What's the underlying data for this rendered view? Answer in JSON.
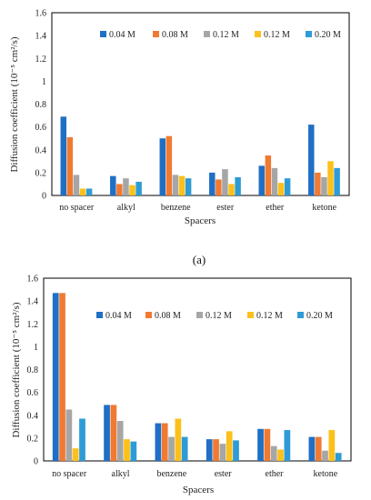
{
  "colors": {
    "series": [
      "#1f6fc5",
      "#f07a32",
      "#a6a6a6",
      "#fbc01a",
      "#2e9bd6"
    ],
    "axis": "#000000"
  },
  "panel_a_label": "(a)",
  "chart_data": [
    {
      "type": "bar",
      "title": "",
      "xlabel": "Spacers",
      "ylabel": "Diffusion coefficient (10⁻⁵ cm²/s)",
      "ylim": [
        0,
        1.6
      ],
      "yticks": [
        "0",
        "0.2",
        "0.4",
        "0.6",
        "0.8",
        "1",
        "1.2",
        "1.4",
        "1.6"
      ],
      "legend_position": "top",
      "grid": false,
      "categories": [
        "no spacer",
        "alkyl",
        "benzene",
        "ester",
        "ether",
        "ketone"
      ],
      "series": [
        {
          "name": "0.04 M",
          "values": [
            0.69,
            0.17,
            0.5,
            0.2,
            0.26,
            0.62
          ]
        },
        {
          "name": "0.08 M",
          "values": [
            0.51,
            0.1,
            0.52,
            0.14,
            0.35,
            0.2
          ]
        },
        {
          "name": "0.12 M",
          "values": [
            0.18,
            0.15,
            0.18,
            0.23,
            0.24,
            0.16
          ]
        },
        {
          "name": "0.12 M",
          "values": [
            0.06,
            0.09,
            0.17,
            0.1,
            0.11,
            0.3
          ]
        },
        {
          "name": "0.20 M",
          "values": [
            0.06,
            0.12,
            0.15,
            0.16,
            0.15,
            0.24
          ]
        }
      ]
    },
    {
      "type": "bar",
      "title": "",
      "xlabel": "Spacers",
      "ylabel": "Diffusion coefficient (10⁻⁵ cm²/s)",
      "ylim": [
        0,
        1.6
      ],
      "yticks": [
        "0",
        "0.2",
        "0.4",
        "0.6",
        "0.8",
        "1",
        "1.2",
        "1.4",
        "1.6"
      ],
      "legend_position": "top",
      "grid": false,
      "categories": [
        "no spacer",
        "alkyl",
        "benzene",
        "ester",
        "ether",
        "ketone"
      ],
      "series": [
        {
          "name": "0.04 M",
          "values": [
            1.47,
            0.49,
            0.33,
            0.19,
            0.28,
            0.21
          ]
        },
        {
          "name": "0.08 M",
          "values": [
            1.47,
            0.49,
            0.33,
            0.19,
            0.28,
            0.21
          ]
        },
        {
          "name": "0.12 M",
          "values": [
            0.45,
            0.35,
            0.21,
            0.15,
            0.13,
            0.09
          ]
        },
        {
          "name": "0.12 M",
          "values": [
            0.11,
            0.19,
            0.37,
            0.26,
            0.1,
            0.27
          ]
        },
        {
          "name": "0.20 M",
          "values": [
            0.37,
            0.17,
            0.21,
            0.18,
            0.27,
            0.07
          ]
        }
      ]
    }
  ]
}
